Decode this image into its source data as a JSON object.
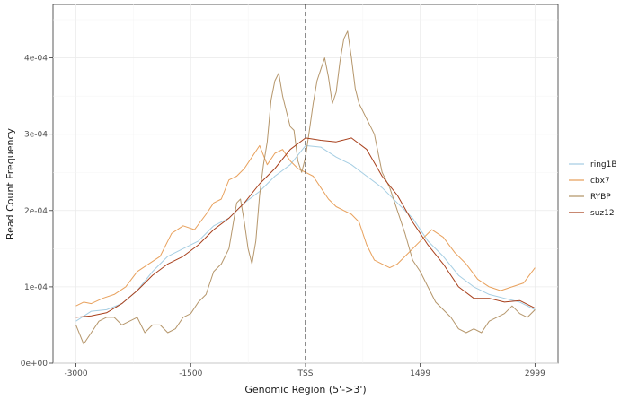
{
  "chart_data": {
    "type": "line",
    "xlabel": "Genomic Region (5'->3')",
    "ylabel": "Read Count Frequency",
    "xlim": [
      -3300,
      3300
    ],
    "ylim": [
      0,
      0.00047
    ],
    "x_ticks": [
      -3000,
      -1500,
      0,
      1499,
      2999
    ],
    "x_tick_labels": [
      "-3000",
      "-1500",
      "TSS",
      "1499",
      "2999"
    ],
    "y_ticks": [
      0,
      0.0001,
      0.0002,
      0.0003,
      0.0004
    ],
    "y_tick_labels": [
      "0e+00",
      "1e-04",
      "2e-04",
      "3e-04",
      "4e-04"
    ],
    "vline_x": 0,
    "grid": true,
    "legend_position": "right",
    "series": [
      {
        "name": "ring1B",
        "color": "#a6cee3",
        "x": [
          -3000,
          -2800,
          -2600,
          -2400,
          -2200,
          -2000,
          -1800,
          -1600,
          -1400,
          -1200,
          -1000,
          -800,
          -600,
          -400,
          -200,
          0,
          200,
          400,
          600,
          800,
          1000,
          1200,
          1400,
          1600,
          1800,
          2000,
          2200,
          2400,
          2600,
          2800,
          2999
        ],
        "y": [
          5.5e-05,
          6.8e-05,
          7e-05,
          7.8e-05,
          9.5e-05,
          0.00012,
          0.00014,
          0.00015,
          0.00016,
          0.00018,
          0.00019,
          0.00021,
          0.000225,
          0.000245,
          0.00026,
          0.000285,
          0.000283,
          0.00027,
          0.00026,
          0.000245,
          0.00023,
          0.00021,
          0.00019,
          0.00016,
          0.00014,
          0.000115,
          0.0001,
          9e-05,
          8.5e-05,
          8e-05,
          7e-05
        ]
      },
      {
        "name": "cbx7",
        "color": "#e8a15d",
        "x": [
          -3000,
          -2900,
          -2800,
          -2650,
          -2500,
          -2350,
          -2200,
          -2050,
          -1900,
          -1750,
          -1600,
          -1450,
          -1300,
          -1200,
          -1100,
          -1000,
          -900,
          -800,
          -700,
          -600,
          -500,
          -400,
          -300,
          -200,
          -100,
          0,
          100,
          200,
          300,
          400,
          500,
          600,
          700,
          800,
          900,
          1000,
          1100,
          1200,
          1350,
          1500,
          1650,
          1800,
          1950,
          2100,
          2250,
          2400,
          2550,
          2700,
          2850,
          2999
        ],
        "y": [
          7.5e-05,
          8e-05,
          7.8e-05,
          8.5e-05,
          9e-05,
          0.0001,
          0.00012,
          0.00013,
          0.00014,
          0.00017,
          0.00018,
          0.000175,
          0.000195,
          0.00021,
          0.000215,
          0.00024,
          0.000245,
          0.000255,
          0.00027,
          0.000285,
          0.00026,
          0.000275,
          0.00028,
          0.000265,
          0.000255,
          0.00025,
          0.000245,
          0.00023,
          0.000215,
          0.000205,
          0.0002,
          0.000195,
          0.000185,
          0.000155,
          0.000135,
          0.00013,
          0.000125,
          0.00013,
          0.000145,
          0.00016,
          0.000175,
          0.000165,
          0.000145,
          0.00013,
          0.00011,
          0.0001,
          9.5e-05,
          0.0001,
          0.000105,
          0.000125
        ]
      },
      {
        "name": "RYBP",
        "color": "#b5966b",
        "x": [
          -3000,
          -2900,
          -2800,
          -2700,
          -2600,
          -2500,
          -2400,
          -2300,
          -2200,
          -2100,
          -2000,
          -1900,
          -1800,
          -1700,
          -1600,
          -1500,
          -1400,
          -1300,
          -1200,
          -1100,
          -1000,
          -950,
          -900,
          -850,
          -800,
          -750,
          -700,
          -650,
          -600,
          -550,
          -500,
          -450,
          -400,
          -350,
          -300,
          -250,
          -200,
          -150,
          -100,
          -50,
          0,
          50,
          100,
          150,
          200,
          250,
          300,
          350,
          400,
          450,
          500,
          550,
          600,
          650,
          700,
          750,
          800,
          850,
          900,
          950,
          1000,
          1100,
          1200,
          1300,
          1400,
          1500,
          1600,
          1700,
          1800,
          1900,
          2000,
          2100,
          2200,
          2300,
          2400,
          2500,
          2600,
          2700,
          2800,
          2900,
          2999
        ],
        "y": [
          5e-05,
          2.5e-05,
          4e-05,
          5.5e-05,
          6e-05,
          6e-05,
          5e-05,
          5.5e-05,
          6e-05,
          4e-05,
          5e-05,
          5e-05,
          4e-05,
          4.5e-05,
          6e-05,
          6.5e-05,
          8e-05,
          9e-05,
          0.00012,
          0.00013,
          0.00015,
          0.00018,
          0.00021,
          0.000215,
          0.000185,
          0.00015,
          0.00013,
          0.00016,
          0.00022,
          0.00026,
          0.00029,
          0.000345,
          0.00037,
          0.00038,
          0.00035,
          0.00033,
          0.00031,
          0.000305,
          0.000265,
          0.00025,
          0.00027,
          0.000305,
          0.00034,
          0.00037,
          0.000385,
          0.0004,
          0.000375,
          0.00034,
          0.000355,
          0.000395,
          0.000425,
          0.000435,
          0.0004,
          0.00036,
          0.00034,
          0.00033,
          0.00032,
          0.00031,
          0.0003,
          0.000275,
          0.00025,
          0.00023,
          0.0002,
          0.00017,
          0.000135,
          0.00012,
          0.0001,
          8e-05,
          7e-05,
          6e-05,
          4.5e-05,
          4e-05,
          4.5e-05,
          4e-05,
          5.5e-05,
          6e-05,
          6.5e-05,
          7.5e-05,
          6.5e-05,
          6e-05,
          7e-05
        ]
      },
      {
        "name": "suz12",
        "color": "#a8401c",
        "x": [
          -3000,
          -2800,
          -2600,
          -2400,
          -2200,
          -2000,
          -1800,
          -1600,
          -1400,
          -1200,
          -1000,
          -800,
          -600,
          -400,
          -200,
          0,
          200,
          400,
          600,
          800,
          1000,
          1200,
          1400,
          1600,
          1800,
          2000,
          2200,
          2400,
          2600,
          2800,
          2999
        ],
        "y": [
          6e-05,
          6.2e-05,
          6.6e-05,
          7.8e-05,
          9.5e-05,
          0.000115,
          0.00013,
          0.00014,
          0.000155,
          0.000175,
          0.00019,
          0.00021,
          0.000235,
          0.000255,
          0.00028,
          0.000295,
          0.000292,
          0.00029,
          0.000295,
          0.00028,
          0.000245,
          0.00022,
          0.000185,
          0.000155,
          0.00013,
          0.0001,
          8.5e-05,
          8.5e-05,
          8e-05,
          8.2e-05,
          7.2e-05
        ]
      }
    ]
  }
}
